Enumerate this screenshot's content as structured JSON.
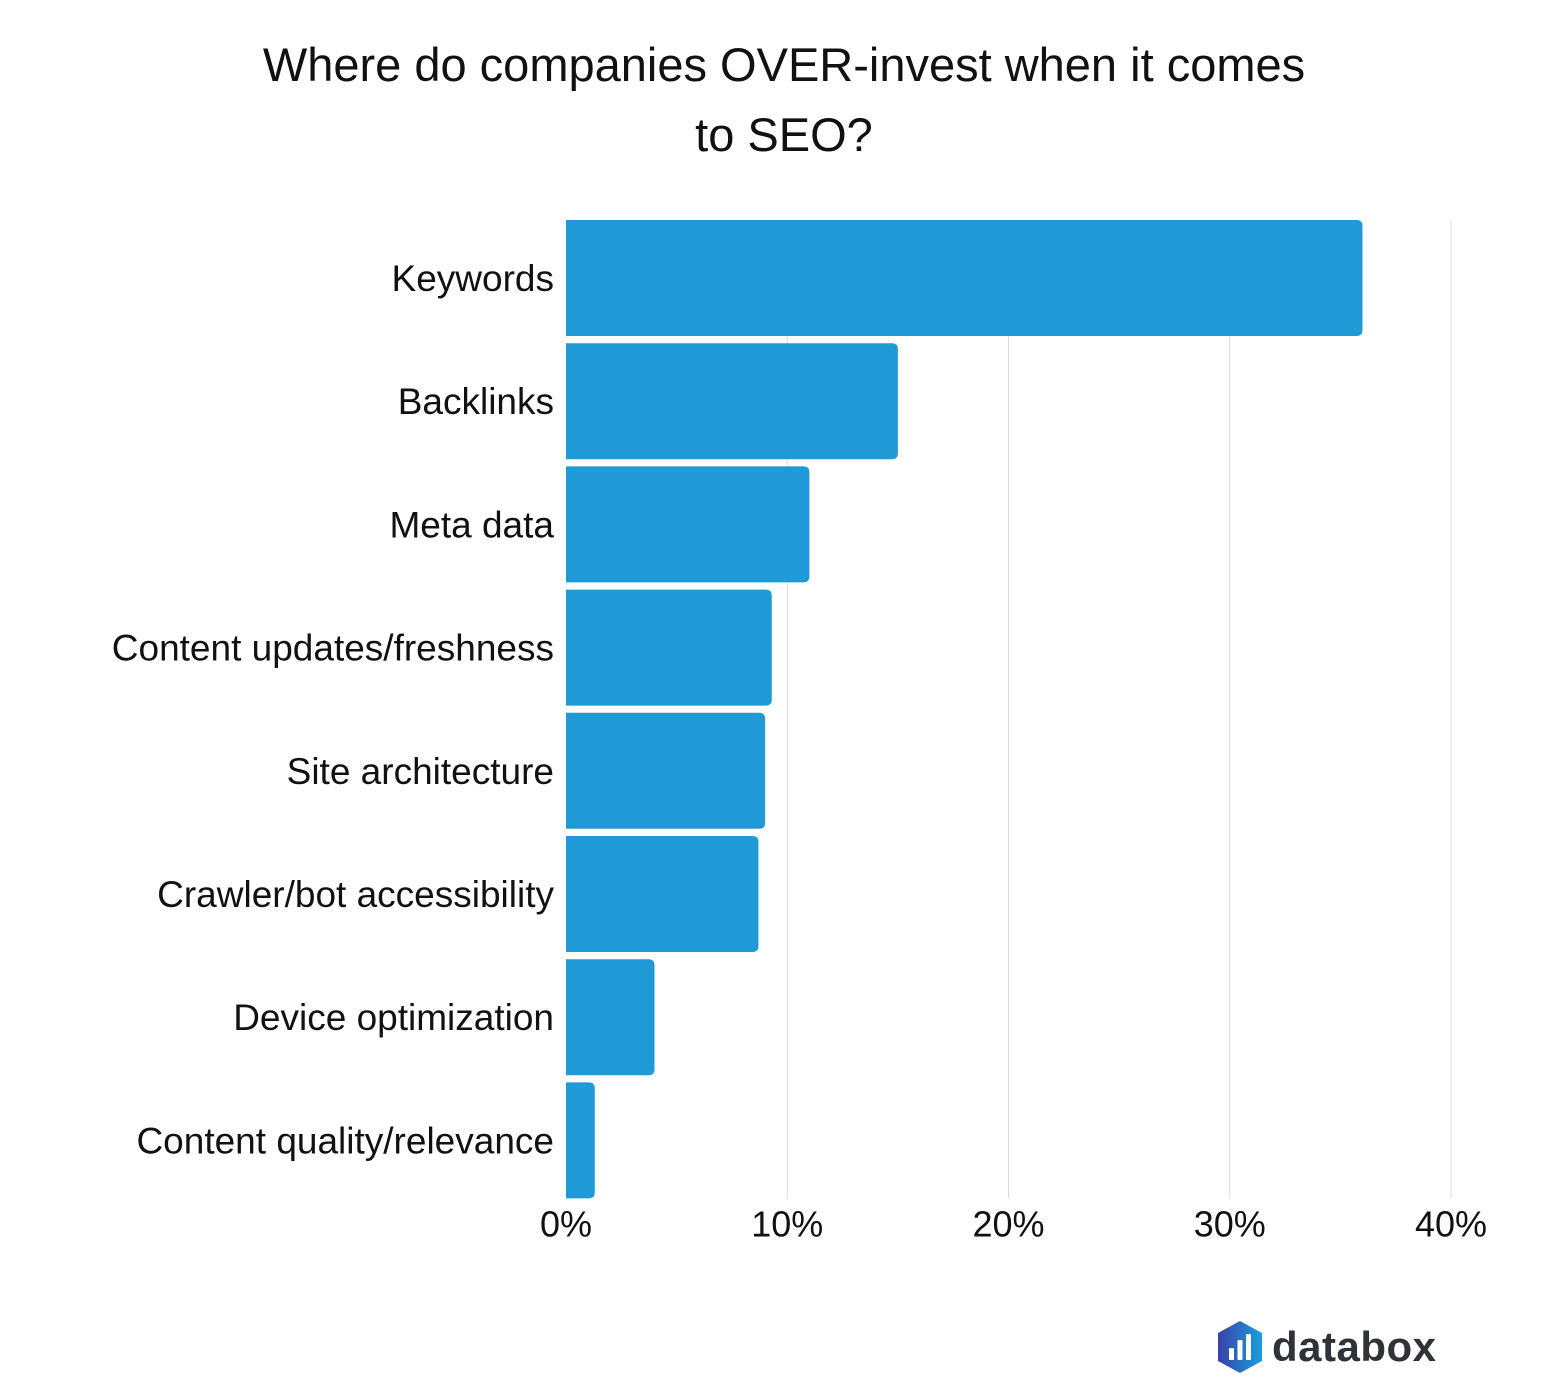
{
  "chart_data": {
    "type": "bar",
    "orientation": "horizontal",
    "title_lines": [
      "Where do companies OVER-invest when it comes",
      "to SEO?"
    ],
    "categories": [
      "Keywords",
      "Backlinks",
      "Meta data",
      "Content updates/freshness",
      "Site architecture",
      "Crawler/bot accessibility",
      "Device optimization",
      "Content quality/relevance"
    ],
    "values": [
      36.0,
      15.0,
      11.0,
      9.3,
      9.0,
      8.7,
      4.0,
      1.3
    ],
    "unit": "%",
    "xlim": [
      0,
      40
    ],
    "xticks": [
      0,
      10,
      20,
      30,
      40
    ],
    "xtick_labels": [
      "0%",
      "10%",
      "20%",
      "30%",
      "40%"
    ],
    "grid": true,
    "bar_color": "#1f9ad6",
    "xlabel": "",
    "ylabel": ""
  },
  "branding": {
    "logo_text": "databox",
    "icon": "databox-hexagon-chart-icon"
  }
}
